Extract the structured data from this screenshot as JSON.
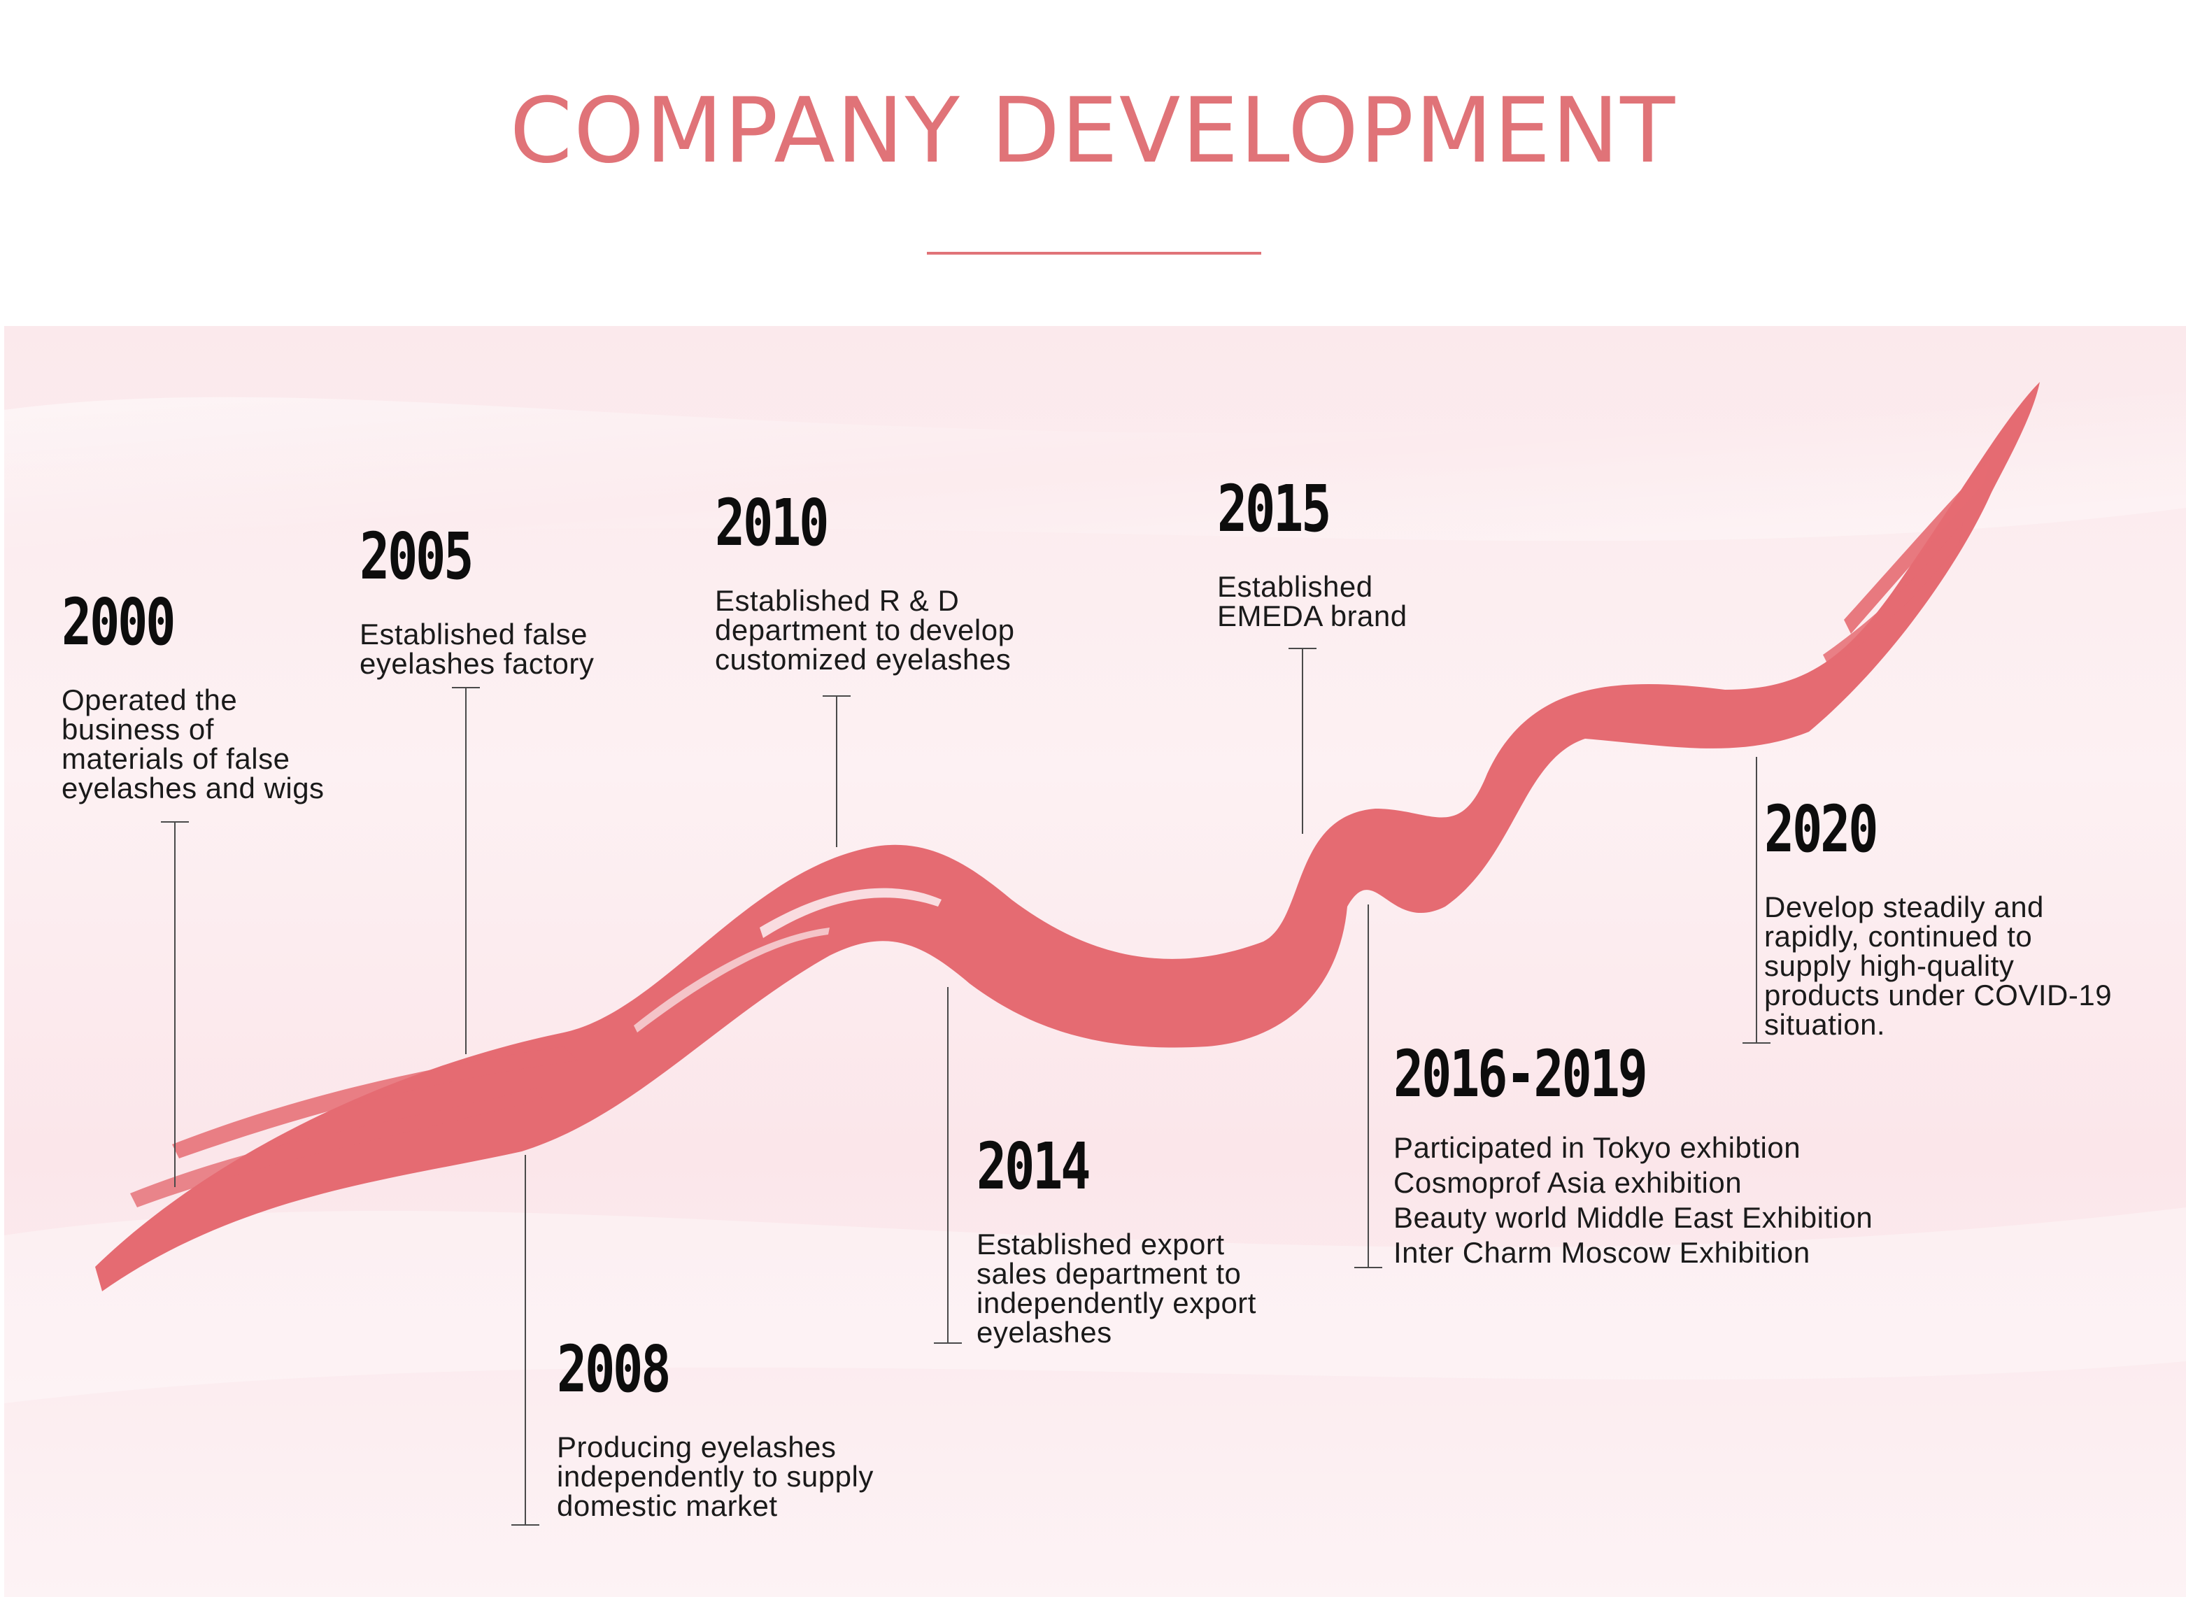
{
  "title": "COMPANY DEVELOPMENT",
  "colors": {
    "accent": "#e07378",
    "brush": "#e56b72",
    "rule": "#e07378",
    "connector": "#4a4a4a",
    "text": "#1a1a1a"
  },
  "milestones": [
    {
      "year": "2000",
      "lines": [
        "Operated the",
        "business of",
        "materials of false",
        "eyelashes and wigs"
      ]
    },
    {
      "year": "2005",
      "lines": [
        "Established false",
        "eyelashes factory"
      ]
    },
    {
      "year": "2008",
      "lines": [
        "Producing eyelashes",
        "independently to supply",
        "domestic market"
      ]
    },
    {
      "year": "2010",
      "lines": [
        "Established R & D",
        "department to develop",
        "customized eyelashes"
      ]
    },
    {
      "year": "2014",
      "lines": [
        "Established export",
        "sales department to",
        "independently export",
        "eyelashes"
      ]
    },
    {
      "year": "2015",
      "lines": [
        "Established",
        "EMEDA brand"
      ]
    },
    {
      "year": "2016-2019",
      "lines": [
        "Participated in Tokyo exhibtion",
        "Cosmoprof Asia exhibition",
        "Beauty world Middle East Exhibition",
        "Inter Charm Moscow Exhibition"
      ]
    },
    {
      "year": "2020",
      "lines": [
        "Develop steadily and",
        "rapidly, continued to",
        "supply high-quality",
        "products under COVID-19",
        "situation."
      ]
    }
  ]
}
